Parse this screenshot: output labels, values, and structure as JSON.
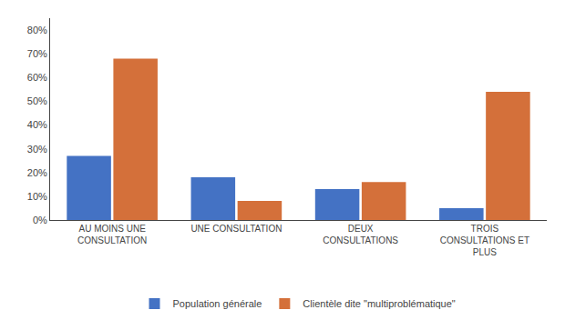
{
  "chart_data": {
    "type": "bar",
    "categories": [
      "AU MOINS UNE\nCONSULTATION",
      "UNE CONSULTATION",
      "DEUX\nCONSULTATIONS",
      "TROIS\nCONSULTATIONS ET\nPLUS"
    ],
    "series": [
      {
        "name": "Population générale",
        "color": "#4472C4",
        "values": [
          0.27,
          0.18,
          0.13,
          0.05
        ]
      },
      {
        "name": "Clientèle dite \"multiproblématique\"",
        "color": "#D4703A",
        "values": [
          0.68,
          0.08,
          0.16,
          0.54
        ]
      }
    ],
    "ylim": [
      0,
      0.85
    ],
    "yticks": [
      {
        "value": 0.0,
        "label": "0%"
      },
      {
        "value": 0.1,
        "label": "10%"
      },
      {
        "value": 0.2,
        "label": "20%"
      },
      {
        "value": 0.3,
        "label": "30%"
      },
      {
        "value": 0.4,
        "label": "40%"
      },
      {
        "value": 0.5,
        "label": "50%"
      },
      {
        "value": 0.6,
        "label": "60%"
      },
      {
        "value": 0.7,
        "label": "70%"
      },
      {
        "value": 0.8,
        "label": "80%"
      }
    ],
    "grid": false,
    "legend": "bottom"
  }
}
